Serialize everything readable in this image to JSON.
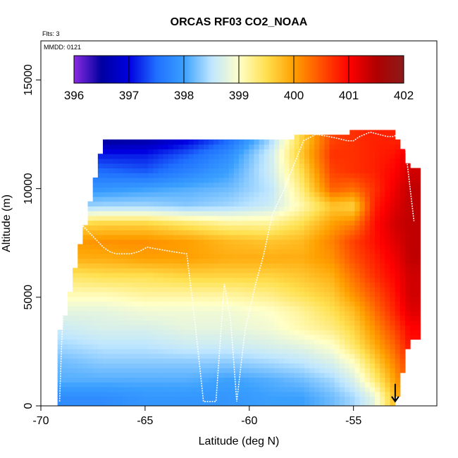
{
  "chart_data": {
    "type": "heatmap",
    "title": "ORCAS RF03 CO2_NOAA",
    "annotations": [
      "Flts: 3",
      "MMDD: 0121"
    ],
    "xlabel": "Latitude (deg N)",
    "ylabel": "Altitude (m)",
    "xlim": [
      -70,
      -51
    ],
    "ylim": [
      0,
      16800
    ],
    "xticks": [
      -70,
      -65,
      -60,
      -55
    ],
    "yticks": [
      0,
      5000,
      10000,
      15000
    ],
    "colorbar": {
      "min": 396,
      "max": 402,
      "ticks": [
        396,
        397,
        398,
        399,
        400,
        401,
        402
      ],
      "palette": [
        "#8a2be2",
        "#0000a0",
        "#0000e0",
        "#1f6fff",
        "#3aa0ff",
        "#bfe6ff",
        "#ffffc8",
        "#ffe050",
        "#ffa000",
        "#ff5000",
        "#ff0000",
        "#b00000",
        "#8b1a1a"
      ]
    },
    "grid": false,
    "co2_profile": {
      "altitude_levels_m": [
        400,
        1200,
        2000,
        2800,
        3600,
        4400,
        5200,
        6000,
        6800,
        7600,
        8400,
        9200,
        10000,
        10800,
        11600,
        12200
      ],
      "latitude_columns": [
        -69,
        -67,
        -65,
        -63,
        -61,
        -59,
        -57.5,
        -56,
        -55,
        -54,
        -53,
        -52.3
      ],
      "top_m": [
        3500,
        12200,
        12200,
        12200,
        12200,
        12300,
        12400,
        12500,
        12600,
        12600,
        12600,
        11000
      ],
      "bottom_m": [
        0,
        0,
        0,
        0,
        0,
        0,
        0,
        0,
        0,
        0,
        0,
        3000
      ],
      "co2_ppm": [
        [
          397.8,
          397.8,
          397.9,
          397.9,
          397.9,
          398.0,
          398.0,
          398.2,
          398.4,
          398.8,
          399.8,
          400.4
        ],
        [
          398.1,
          398.1,
          398.1,
          398.1,
          398.0,
          398.1,
          398.2,
          398.4,
          398.7,
          399.3,
          400.0,
          400.6
        ],
        [
          398.2,
          398.3,
          398.3,
          398.3,
          398.3,
          398.4,
          398.5,
          398.7,
          399.0,
          399.6,
          400.2,
          400.7
        ],
        [
          398.4,
          398.5,
          398.5,
          398.6,
          398.6,
          398.7,
          398.8,
          399.0,
          399.4,
          399.9,
          400.4,
          400.9
        ],
        [
          398.6,
          398.7,
          398.7,
          398.8,
          398.8,
          398.9,
          399.1,
          399.3,
          399.6,
          400.1,
          400.6,
          401.0
        ],
        [
          398.8,
          398.8,
          398.9,
          398.9,
          398.9,
          399.0,
          399.2,
          399.5,
          399.8,
          400.3,
          400.8,
          401.2
        ],
        [
          399.1,
          399.1,
          399.2,
          399.2,
          399.2,
          399.3,
          399.5,
          399.7,
          400.1,
          400.5,
          400.9,
          401.3
        ],
        [
          399.4,
          399.5,
          399.5,
          399.6,
          399.6,
          399.6,
          399.7,
          399.9,
          400.3,
          400.7,
          401.0,
          401.3
        ],
        [
          399.9,
          399.9,
          400.0,
          400.0,
          399.9,
          399.9,
          399.9,
          400.1,
          400.5,
          400.8,
          401.1,
          401.4
        ],
        [
          400.0,
          400.1,
          400.1,
          400.0,
          399.8,
          399.7,
          399.8,
          400.2,
          400.6,
          400.9,
          401.2,
          401.4
        ],
        [
          399.5,
          399.6,
          399.6,
          399.4,
          399.2,
          399.2,
          399.5,
          400.0,
          400.2,
          400.9,
          401.3,
          401.4
        ],
        [
          398.3,
          398.4,
          398.4,
          398.3,
          398.4,
          398.6,
          399.1,
          399.7,
          399.6,
          400.8,
          401.2,
          401.4
        ],
        [
          397.9,
          397.9,
          398.0,
          398.1,
          398.2,
          398.5,
          399.3,
          400.4,
          400.3,
          400.7,
          401.1,
          401.4
        ],
        [
          397.6,
          397.5,
          397.4,
          397.7,
          398.0,
          398.6,
          399.5,
          400.6,
          400.7,
          400.8,
          401.0,
          401.3
        ],
        [
          397.2,
          397.1,
          397.1,
          397.4,
          397.8,
          398.6,
          399.7,
          400.7,
          400.7,
          400.8,
          400.9,
          401.2
        ],
        [
          396.8,
          396.5,
          396.6,
          397.0,
          397.5,
          398.4,
          399.6,
          400.6,
          400.7,
          400.8,
          400.8,
          400.8
        ]
      ]
    },
    "flight_track": {
      "latitude": [
        -69.1,
        -69.0,
        -68.8,
        -68.6,
        -68.4,
        -68.1,
        -67.9,
        -67.5,
        -67.3,
        -67.0,
        -66.7,
        -66.4,
        -66.0,
        -65.7,
        -65.3,
        -64.9,
        -64.3,
        -63.7,
        -63.0,
        -62.6,
        -62.2,
        -61.6,
        -61.2,
        -60.9,
        -60.6,
        -60.2,
        -59.7,
        -59.3,
        -58.9,
        -58.4,
        -57.9,
        -57.4,
        -56.8,
        -56.2,
        -55.7,
        -55.3,
        -55.0,
        -54.7,
        -54.2,
        -53.8,
        -53.4,
        -53.1,
        -52.6,
        -52.1
      ],
      "altitude_m": [
        200,
        3000,
        6500,
        8200,
        8600,
        8400,
        8200,
        7800,
        7600,
        7300,
        7100,
        7000,
        7000,
        7000,
        7100,
        7300,
        7200,
        7100,
        7000,
        3800,
        200,
        200,
        5600,
        4000,
        200,
        3500,
        5600,
        7000,
        8800,
        9800,
        11000,
        12200,
        12500,
        12400,
        12300,
        12200,
        12200,
        12400,
        12600,
        12500,
        12400,
        12400,
        12600,
        8500
      ]
    },
    "arrow_marker": {
      "latitude": -53.0,
      "altitude_m": 300
    }
  }
}
